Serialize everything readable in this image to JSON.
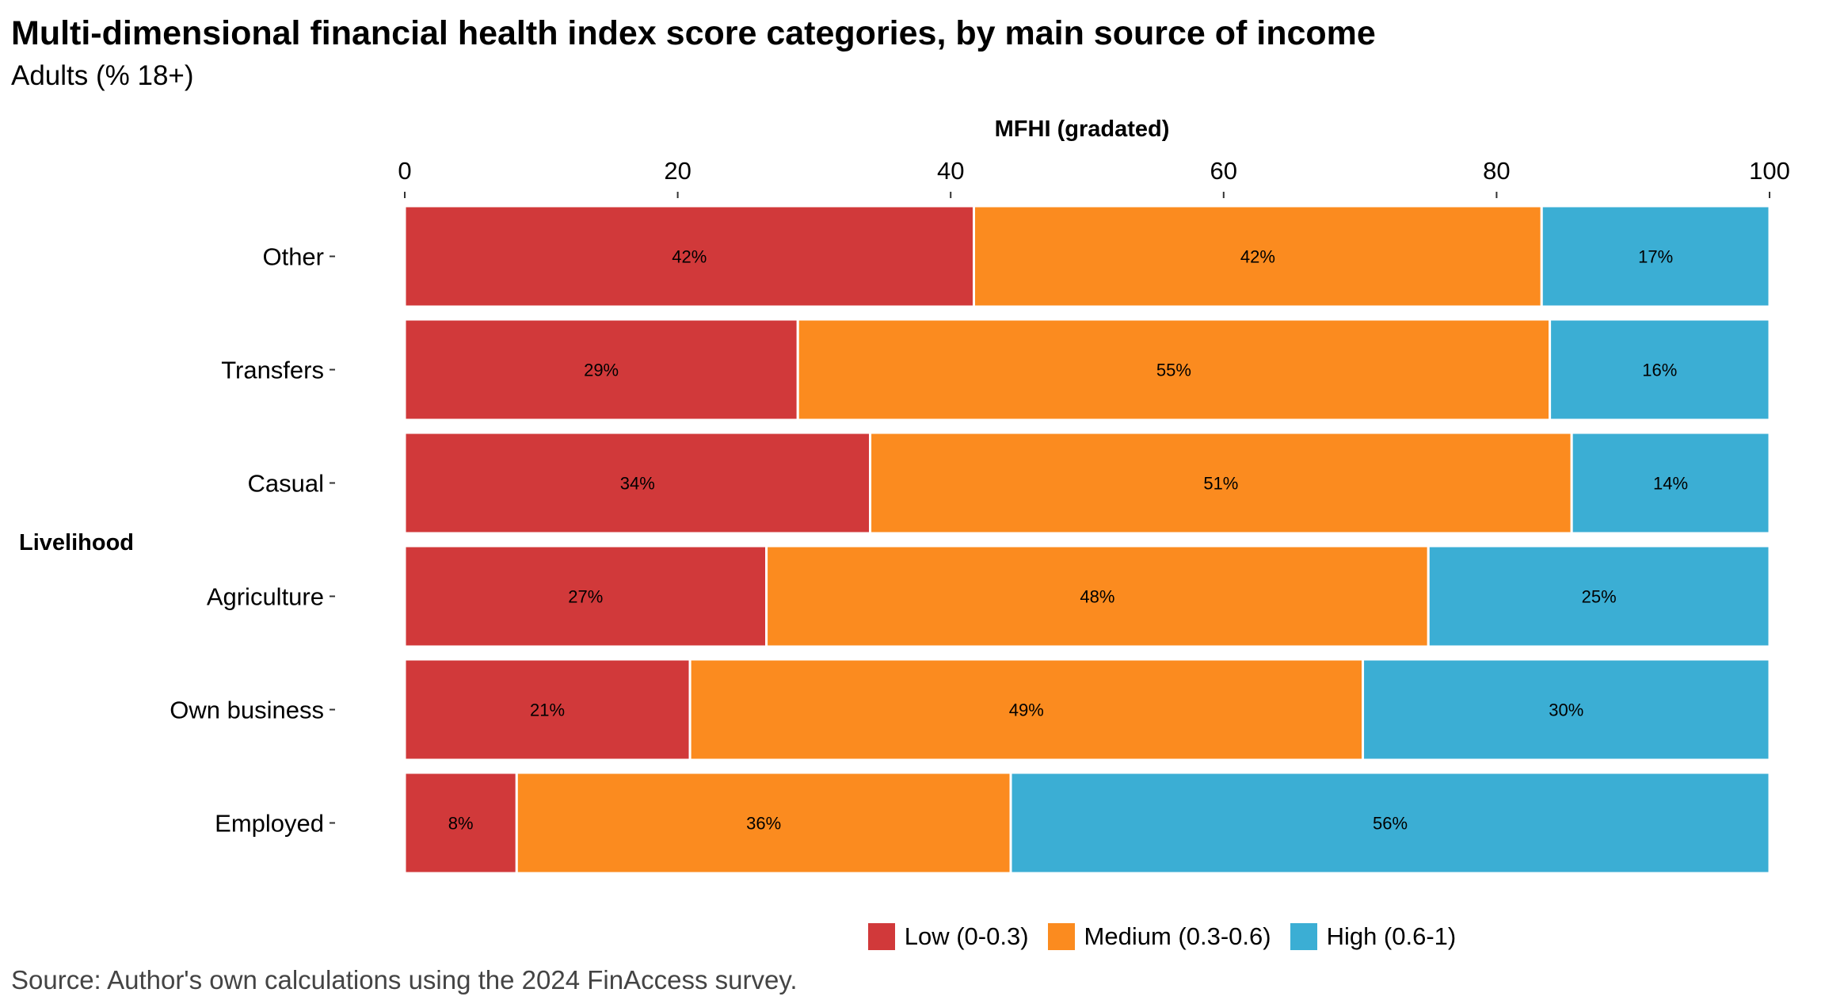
{
  "title": "Multi-dimensional financial health index score categories, by main source of income",
  "subtitle": "Adults (% 18+)",
  "source": "Source: Author's own calculations using the 2024 FinAccess survey.",
  "chart_data": {
    "type": "bar",
    "orientation": "horizontal",
    "stacked": true,
    "xlabel": "MFHI (gradated)",
    "ylabel": "Livelihood",
    "xlim": [
      0,
      100
    ],
    "x_ticks": [
      "0",
      "20",
      "40",
      "60",
      "80",
      "100"
    ],
    "x_axis_position": "top",
    "grid": false,
    "legend_position": "bottom",
    "categories": [
      "Other",
      "Transfers",
      "Casual",
      "Agriculture",
      "Own business",
      "Employed"
    ],
    "series": [
      {
        "name": "Low (0-0.3)",
        "color": "#D1393A",
        "values": [
          41.7,
          28.8,
          34.1,
          26.5,
          20.9,
          8.2
        ],
        "labels": [
          "42%",
          "29%",
          "34%",
          "27%",
          "21%",
          "8%"
        ]
      },
      {
        "name": "Medium (0.3-0.6)",
        "color": "#FB8B1F",
        "values": [
          41.6,
          55.1,
          51.4,
          48.5,
          49.3,
          36.2
        ],
        "labels": [
          "42%",
          "55%",
          "51%",
          "48%",
          "49%",
          "36%"
        ]
      },
      {
        "name": "High (0.6-1)",
        "color": "#3BAED4",
        "values": [
          16.7,
          16.1,
          14.5,
          25.0,
          29.8,
          55.6
        ],
        "labels": [
          "17%",
          "16%",
          "14%",
          "25%",
          "30%",
          "56%"
        ]
      }
    ]
  }
}
